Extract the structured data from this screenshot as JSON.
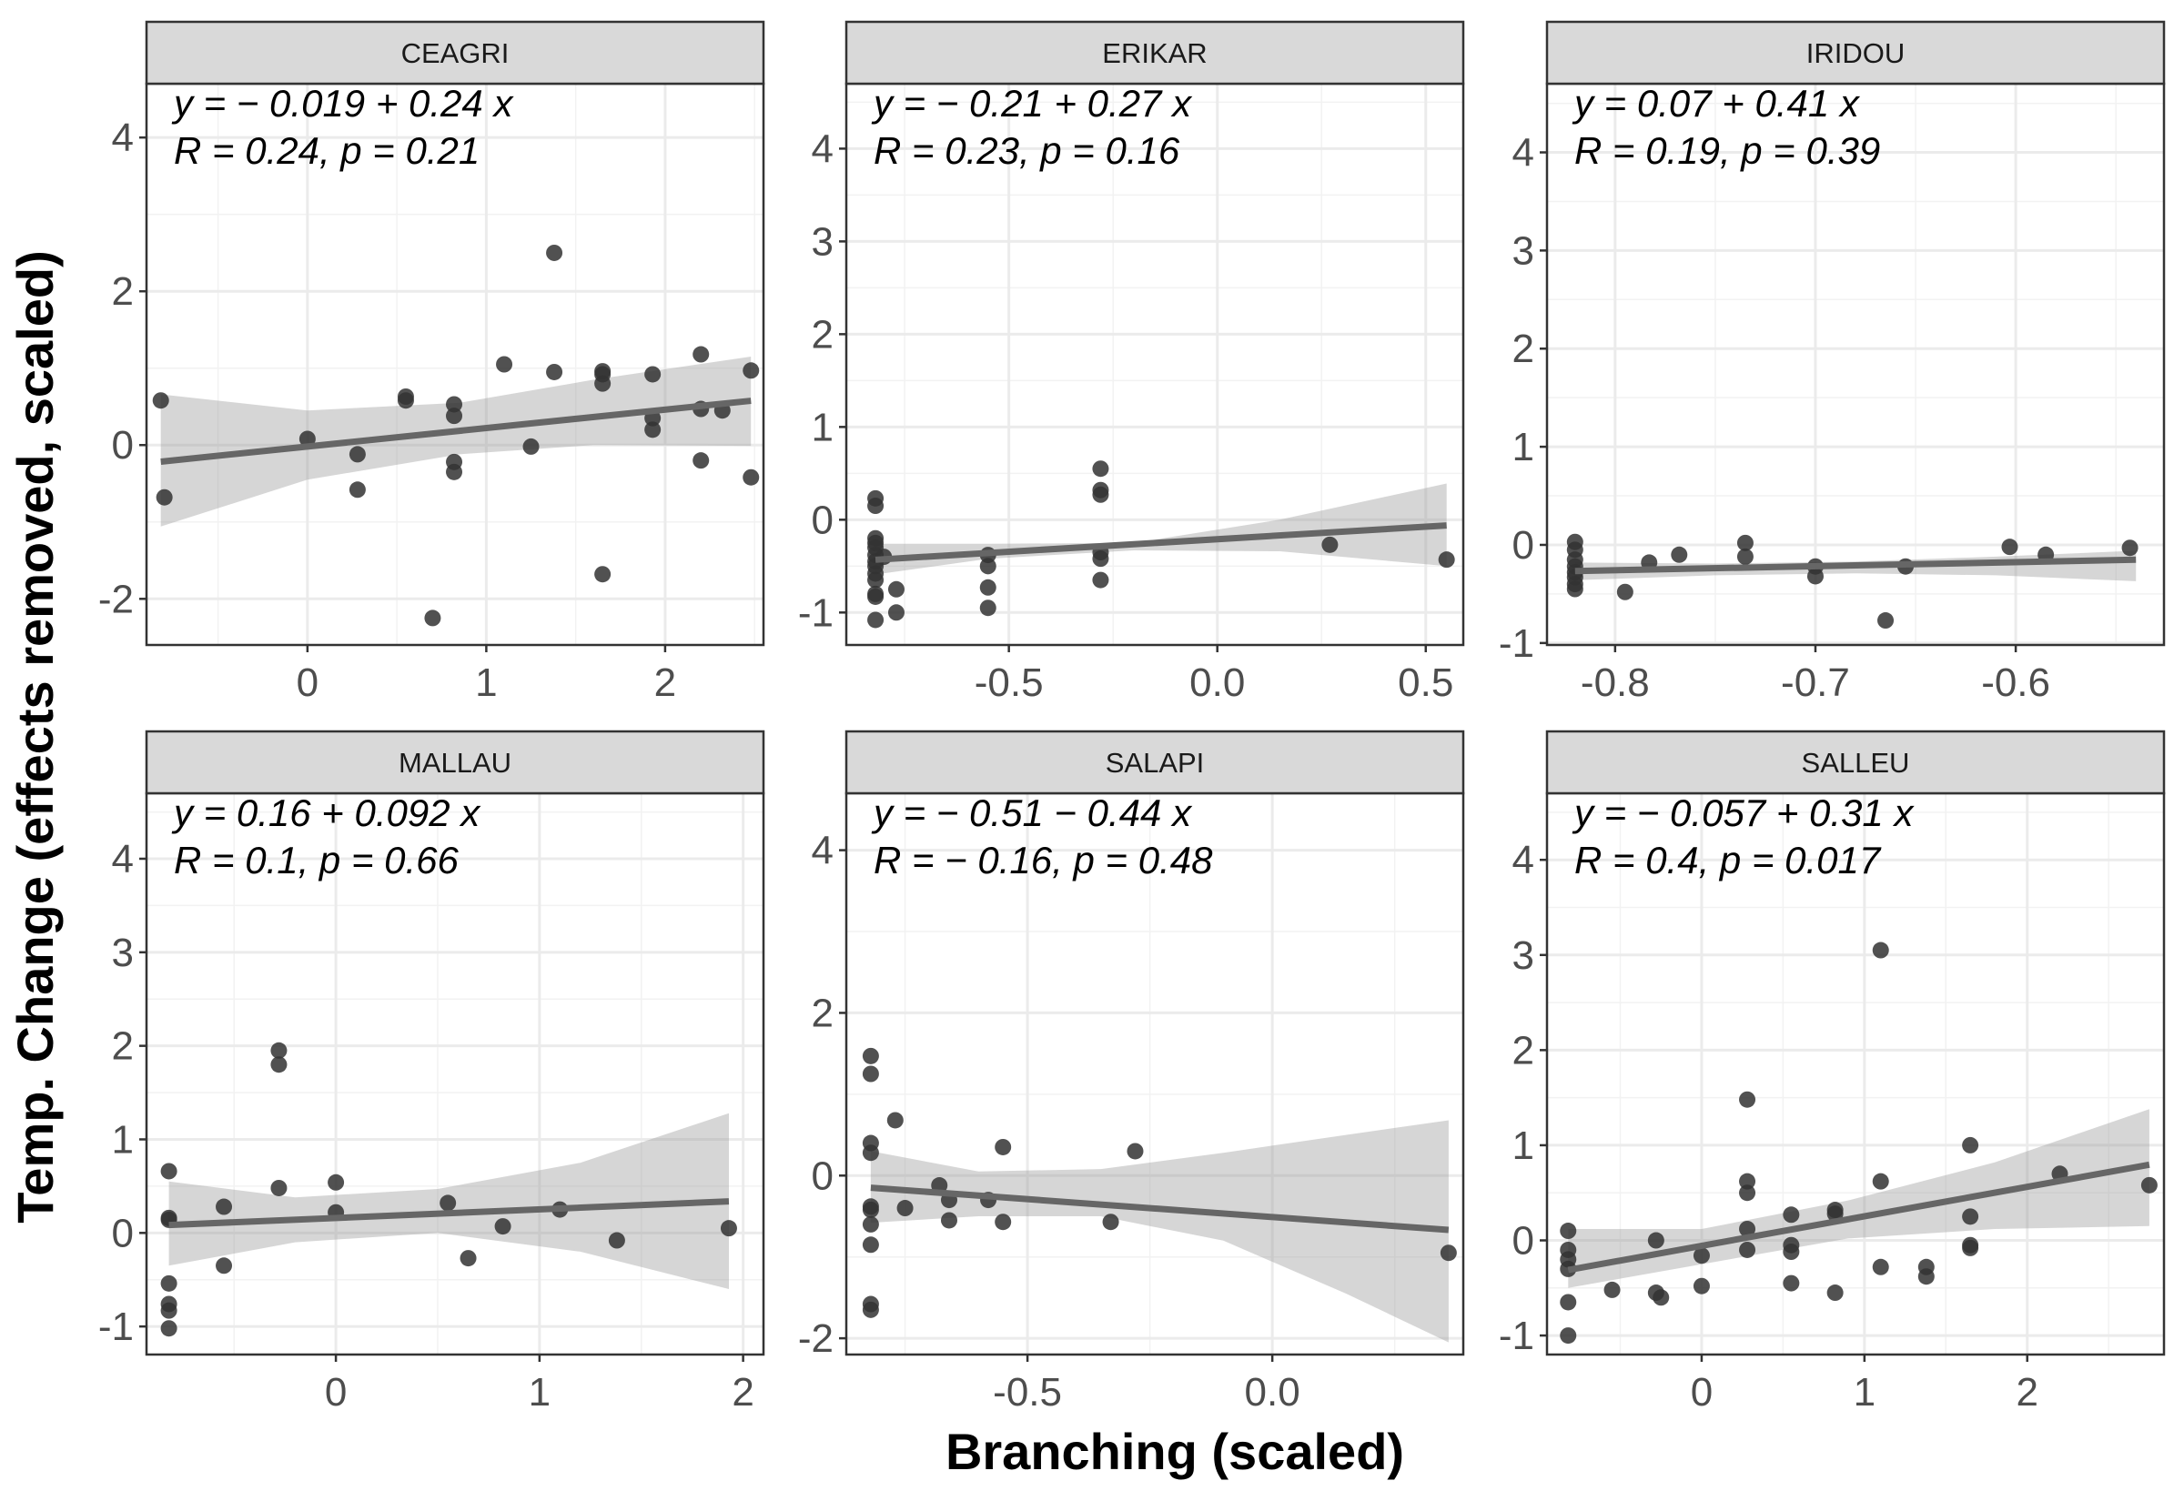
{
  "axes": {
    "xlabel": "Branching (scaled)",
    "ylabel": "Temp. Change (effects removed, scaled)"
  },
  "chart_data": [
    {
      "type": "scatter",
      "title": "CEAGRI",
      "equation": "y = − 0.019 + 0.24 x",
      "stats": "R = 0.24, p = 0.21",
      "xlim": [
        -0.9,
        2.55
      ],
      "ylim": [
        -2.6,
        4.7
      ],
      "xticks": [
        0,
        1,
        2
      ],
      "xtick_labels": [
        "0",
        "1",
        "2"
      ],
      "yticks": [
        -2,
        0,
        2,
        4
      ],
      "ytick_labels": [
        "-2",
        "0",
        "2",
        "4"
      ],
      "fit": {
        "intercept": -0.019,
        "slope": 0.24,
        "x0": -0.82,
        "x1": 2.48
      },
      "band": {
        "x": [
          -0.82,
          0.0,
          0.85,
          1.6,
          2.48
        ],
        "lower": [
          -1.06,
          -0.45,
          -0.12,
          0.0,
          -0.01
        ],
        "upper": [
          0.66,
          0.45,
          0.55,
          0.85,
          1.15
        ]
      },
      "points": [
        {
          "x": -0.82,
          "y": 0.58
        },
        {
          "x": -0.8,
          "y": -0.68
        },
        {
          "x": 0.0,
          "y": 0.08
        },
        {
          "x": 0.28,
          "y": -0.12
        },
        {
          "x": 0.28,
          "y": -0.58
        },
        {
          "x": 0.55,
          "y": 0.63
        },
        {
          "x": 0.55,
          "y": 0.58
        },
        {
          "x": 0.7,
          "y": -2.25
        },
        {
          "x": 0.82,
          "y": 0.53
        },
        {
          "x": 0.82,
          "y": 0.38
        },
        {
          "x": 0.82,
          "y": -0.22
        },
        {
          "x": 0.82,
          "y": -0.35
        },
        {
          "x": 1.1,
          "y": 1.05
        },
        {
          "x": 1.25,
          "y": -0.02
        },
        {
          "x": 1.38,
          "y": 2.5
        },
        {
          "x": 1.38,
          "y": 0.95
        },
        {
          "x": 1.65,
          "y": 0.96
        },
        {
          "x": 1.65,
          "y": 0.92
        },
        {
          "x": 1.65,
          "y": 0.8
        },
        {
          "x": 1.65,
          "y": -1.68
        },
        {
          "x": 1.93,
          "y": 0.92
        },
        {
          "x": 1.93,
          "y": 0.35
        },
        {
          "x": 1.93,
          "y": 0.2
        },
        {
          "x": 2.2,
          "y": 1.18
        },
        {
          "x": 2.2,
          "y": 0.47
        },
        {
          "x": 2.2,
          "y": -0.2
        },
        {
          "x": 2.32,
          "y": 0.45
        },
        {
          "x": 2.48,
          "y": 0.97
        },
        {
          "x": 2.48,
          "y": -0.42
        }
      ]
    },
    {
      "type": "scatter",
      "title": "ERIKAR",
      "equation": "y = − 0.21 + 0.27 x",
      "stats": "R = 0.23, p = 0.16",
      "xlim": [
        -0.89,
        0.59
      ],
      "ylim": [
        -1.35,
        4.7
      ],
      "xticks": [
        -0.5,
        0.0,
        0.5
      ],
      "xtick_labels": [
        "-0.5",
        "0.0",
        "0.5"
      ],
      "yticks": [
        -1,
        0,
        1,
        2,
        3,
        4
      ],
      "ytick_labels": [
        "-1",
        "0",
        "1",
        "2",
        "3",
        "4"
      ],
      "fit": {
        "intercept": -0.21,
        "slope": 0.27,
        "x0": -0.82,
        "x1": 0.55
      },
      "band": {
        "x": [
          -0.82,
          -0.55,
          -0.2,
          0.15,
          0.55
        ],
        "lower": [
          -0.59,
          -0.42,
          -0.33,
          -0.34,
          -0.5
        ],
        "upper": [
          -0.26,
          -0.26,
          -0.25,
          0.0,
          0.39
        ]
      },
      "points": [
        {
          "x": -0.82,
          "y": 0.23
        },
        {
          "x": -0.82,
          "y": 0.15
        },
        {
          "x": -0.82,
          "y": -0.2
        },
        {
          "x": -0.82,
          "y": -0.25
        },
        {
          "x": -0.82,
          "y": -0.3
        },
        {
          "x": -0.82,
          "y": -0.38
        },
        {
          "x": -0.82,
          "y": -0.45
        },
        {
          "x": -0.82,
          "y": -0.5
        },
        {
          "x": -0.82,
          "y": -0.58
        },
        {
          "x": -0.82,
          "y": -0.65
        },
        {
          "x": -0.82,
          "y": -0.8
        },
        {
          "x": -0.82,
          "y": -0.83
        },
        {
          "x": -0.82,
          "y": -1.08
        },
        {
          "x": -0.8,
          "y": -0.4
        },
        {
          "x": -0.77,
          "y": -0.75
        },
        {
          "x": -0.77,
          "y": -1.0
        },
        {
          "x": -0.55,
          "y": -0.38
        },
        {
          "x": -0.55,
          "y": -0.5
        },
        {
          "x": -0.55,
          "y": -0.73
        },
        {
          "x": -0.55,
          "y": -0.95
        },
        {
          "x": -0.28,
          "y": 0.55
        },
        {
          "x": -0.28,
          "y": 0.32
        },
        {
          "x": -0.28,
          "y": 0.27
        },
        {
          "x": -0.28,
          "y": -0.35
        },
        {
          "x": -0.28,
          "y": -0.42
        },
        {
          "x": -0.28,
          "y": -0.65
        },
        {
          "x": 0.27,
          "y": -0.27
        },
        {
          "x": 0.55,
          "y": -0.43
        }
      ]
    },
    {
      "type": "scatter",
      "title": "IRIDOU",
      "equation": "y = 0.07 + 0.41 x",
      "stats": "R = 0.19, p = 0.39",
      "xlim": [
        -0.834,
        -0.526
      ],
      "ylim": [
        -1.02,
        4.7
      ],
      "xticks": [
        -0.8,
        -0.7,
        -0.6
      ],
      "xtick_labels": [
        "-0.8",
        "-0.7",
        "-0.6"
      ],
      "yticks": [
        -1,
        0,
        1,
        2,
        3,
        4
      ],
      "ytick_labels": [
        "-1",
        "0",
        "1",
        "2",
        "3",
        "4"
      ],
      "fit": {
        "intercept": 0.07,
        "slope": 0.41,
        "x0": -0.82,
        "x1": -0.54
      },
      "band": {
        "x": [
          -0.82,
          -0.75,
          -0.68,
          -0.61,
          -0.54
        ],
        "lower": [
          -0.36,
          -0.31,
          -0.29,
          -0.31,
          -0.37
        ],
        "upper": [
          -0.18,
          -0.19,
          -0.17,
          -0.12,
          -0.06
        ]
      },
      "points": [
        {
          "x": -0.82,
          "y": 0.03
        },
        {
          "x": -0.82,
          "y": -0.05
        },
        {
          "x": -0.82,
          "y": -0.15
        },
        {
          "x": -0.82,
          "y": -0.22
        },
        {
          "x": -0.82,
          "y": -0.28
        },
        {
          "x": -0.82,
          "y": -0.33
        },
        {
          "x": -0.82,
          "y": -0.4
        },
        {
          "x": -0.82,
          "y": -0.45
        },
        {
          "x": -0.795,
          "y": -0.48
        },
        {
          "x": -0.783,
          "y": -0.18
        },
        {
          "x": -0.768,
          "y": -0.1
        },
        {
          "x": -0.735,
          "y": 0.02
        },
        {
          "x": -0.735,
          "y": -0.12
        },
        {
          "x": -0.7,
          "y": -0.22
        },
        {
          "x": -0.7,
          "y": -0.32
        },
        {
          "x": -0.665,
          "y": -0.77
        },
        {
          "x": -0.655,
          "y": -0.22
        },
        {
          "x": -0.603,
          "y": -0.02
        },
        {
          "x": -0.585,
          "y": -0.1
        },
        {
          "x": -0.543,
          "y": -0.03
        }
      ]
    },
    {
      "type": "scatter",
      "title": "MALLAU",
      "equation": "y = 0.16 + 0.092 x",
      "stats": "R = 0.1, p = 0.66",
      "xlim": [
        -0.93,
        2.1
      ],
      "ylim": [
        -1.3,
        4.7
      ],
      "xticks": [
        0,
        1,
        2
      ],
      "xtick_labels": [
        "0",
        "1",
        "2"
      ],
      "yticks": [
        -1,
        0,
        1,
        2,
        3,
        4
      ],
      "ytick_labels": [
        "-1",
        "0",
        "1",
        "2",
        "3",
        "4"
      ],
      "fit": {
        "intercept": 0.16,
        "slope": 0.092,
        "x0": -0.82,
        "x1": 1.93
      },
      "band": {
        "x": [
          -0.82,
          -0.2,
          0.5,
          1.2,
          1.93
        ],
        "lower": [
          -0.35,
          -0.1,
          0.0,
          -0.2,
          -0.6
        ],
        "upper": [
          0.55,
          0.38,
          0.47,
          0.75,
          1.28
        ]
      },
      "points": [
        {
          "x": -0.82,
          "y": 0.66
        },
        {
          "x": -0.82,
          "y": 0.16
        },
        {
          "x": -0.82,
          "y": 0.14
        },
        {
          "x": -0.82,
          "y": -0.54
        },
        {
          "x": -0.82,
          "y": -0.76
        },
        {
          "x": -0.82,
          "y": -0.83
        },
        {
          "x": -0.82,
          "y": -1.02
        },
        {
          "x": -0.55,
          "y": 0.28
        },
        {
          "x": -0.55,
          "y": -0.35
        },
        {
          "x": -0.28,
          "y": 1.95
        },
        {
          "x": -0.28,
          "y": 1.8
        },
        {
          "x": -0.28,
          "y": 0.48
        },
        {
          "x": 0.0,
          "y": 0.54
        },
        {
          "x": 0.0,
          "y": 0.22
        },
        {
          "x": 0.55,
          "y": 0.32
        },
        {
          "x": 0.65,
          "y": -0.27
        },
        {
          "x": 0.82,
          "y": 0.07
        },
        {
          "x": 1.1,
          "y": 0.25
        },
        {
          "x": 1.38,
          "y": -0.08
        },
        {
          "x": 1.93,
          "y": 0.05
        }
      ]
    },
    {
      "type": "scatter",
      "title": "SALAPI",
      "equation": "y = − 0.51 − 0.44 x",
      "stats": "R = − 0.16, p = 0.48",
      "xlim": [
        -0.87,
        0.39
      ],
      "ylim": [
        -2.2,
        4.7
      ],
      "xticks": [
        -0.5,
        0.0
      ],
      "xtick_labels": [
        "-0.5",
        "0.0"
      ],
      "yticks": [
        -2,
        0,
        2,
        4
      ],
      "ytick_labels": [
        "-2",
        "0",
        "2",
        "4"
      ],
      "fit": {
        "intercept": -0.51,
        "slope": -0.44,
        "x0": -0.82,
        "x1": 0.36
      },
      "band": {
        "x": [
          -0.82,
          -0.6,
          -0.35,
          -0.1,
          0.15,
          0.36
        ],
        "lower": [
          -0.58,
          -0.5,
          -0.5,
          -0.8,
          -1.45,
          -2.05
        ],
        "upper": [
          0.3,
          0.05,
          0.08,
          0.28,
          0.5,
          0.68
        ]
      },
      "points": [
        {
          "x": -0.82,
          "y": 1.47
        },
        {
          "x": -0.82,
          "y": 1.25
        },
        {
          "x": -0.82,
          "y": 0.4
        },
        {
          "x": -0.82,
          "y": 0.28
        },
        {
          "x": -0.82,
          "y": -0.38
        },
        {
          "x": -0.82,
          "y": -0.42
        },
        {
          "x": -0.82,
          "y": -0.6
        },
        {
          "x": -0.82,
          "y": -0.85
        },
        {
          "x": -0.82,
          "y": -1.58
        },
        {
          "x": -0.82,
          "y": -1.65
        },
        {
          "x": -0.77,
          "y": 0.68
        },
        {
          "x": -0.75,
          "y": -0.4
        },
        {
          "x": -0.68,
          "y": -0.12
        },
        {
          "x": -0.66,
          "y": -0.3
        },
        {
          "x": -0.66,
          "y": -0.55
        },
        {
          "x": -0.58,
          "y": -0.3
        },
        {
          "x": -0.55,
          "y": 0.35
        },
        {
          "x": -0.55,
          "y": -0.57
        },
        {
          "x": -0.33,
          "y": -0.57
        },
        {
          "x": -0.28,
          "y": 0.3
        },
        {
          "x": 0.36,
          "y": -0.95
        }
      ]
    },
    {
      "type": "scatter",
      "title": "SALLEU",
      "equation": "y = − 0.057 + 0.31 x",
      "stats": "R = 0.4, p = 0.017",
      "xlim": [
        -0.95,
        2.84
      ],
      "ylim": [
        -1.2,
        4.7
      ],
      "xticks": [
        0,
        1,
        2
      ],
      "xtick_labels": [
        "0",
        "1",
        "2"
      ],
      "yticks": [
        -1,
        0,
        1,
        2,
        3,
        4
      ],
      "ytick_labels": [
        "-1",
        "0",
        "1",
        "2",
        "3",
        "4"
      ],
      "fit": {
        "intercept": -0.057,
        "slope": 0.31,
        "x0": -0.82,
        "x1": 2.75
      },
      "band": {
        "x": [
          -0.82,
          0.0,
          0.9,
          1.8,
          2.75
        ],
        "lower": [
          -0.5,
          -0.25,
          0.02,
          0.12,
          0.15
        ],
        "upper": [
          0.12,
          0.12,
          0.42,
          0.82,
          1.38
        ]
      },
      "points": [
        {
          "x": -0.82,
          "y": 0.1
        },
        {
          "x": -0.82,
          "y": -0.1
        },
        {
          "x": -0.82,
          "y": -0.2
        },
        {
          "x": -0.82,
          "y": -0.3
        },
        {
          "x": -0.82,
          "y": -0.65
        },
        {
          "x": -0.82,
          "y": -1.0
        },
        {
          "x": -0.55,
          "y": -0.52
        },
        {
          "x": -0.28,
          "y": 0.0
        },
        {
          "x": -0.28,
          "y": -0.55
        },
        {
          "x": -0.25,
          "y": -0.6
        },
        {
          "x": 0.0,
          "y": -0.16
        },
        {
          "x": 0.0,
          "y": -0.48
        },
        {
          "x": 0.28,
          "y": 1.48
        },
        {
          "x": 0.28,
          "y": 0.62
        },
        {
          "x": 0.28,
          "y": 0.5
        },
        {
          "x": 0.28,
          "y": 0.12
        },
        {
          "x": 0.28,
          "y": -0.1
        },
        {
          "x": 0.55,
          "y": 0.27
        },
        {
          "x": 0.55,
          "y": -0.05
        },
        {
          "x": 0.55,
          "y": -0.12
        },
        {
          "x": 0.55,
          "y": -0.45
        },
        {
          "x": 0.82,
          "y": 0.32
        },
        {
          "x": 0.82,
          "y": 0.28
        },
        {
          "x": 0.82,
          "y": -0.55
        },
        {
          "x": 1.1,
          "y": 3.05
        },
        {
          "x": 1.1,
          "y": 0.62
        },
        {
          "x": 1.1,
          "y": -0.28
        },
        {
          "x": 1.38,
          "y": -0.28
        },
        {
          "x": 1.38,
          "y": -0.38
        },
        {
          "x": 1.65,
          "y": 1.0
        },
        {
          "x": 1.65,
          "y": 0.25
        },
        {
          "x": 1.65,
          "y": -0.05
        },
        {
          "x": 1.65,
          "y": -0.08
        },
        {
          "x": 2.2,
          "y": 0.7
        },
        {
          "x": 2.75,
          "y": 0.58
        }
      ]
    }
  ]
}
